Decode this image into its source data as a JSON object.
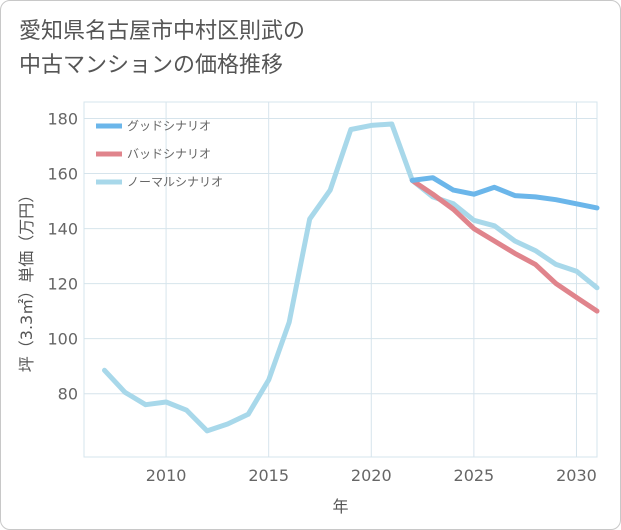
{
  "title_lines": [
    "愛知県名古屋市中村区則武の",
    "中古マンションの価格推移"
  ],
  "chart_data": {
    "type": "line",
    "xlabel": "年",
    "ylabel": "坪（3.3㎡）単価（万円）",
    "xlim": [
      2006,
      2031
    ],
    "ylim": [
      57,
      186
    ],
    "x_ticks": [
      2010,
      2015,
      2020,
      2025,
      2030
    ],
    "y_ticks": [
      80,
      100,
      120,
      140,
      160,
      180
    ],
    "grid": true,
    "legend_position": "top-left",
    "series": [
      {
        "name": "グッドシナリオ",
        "color": "#6bb6ea",
        "x": [
          2022,
          2023,
          2024,
          2025,
          2026,
          2027,
          2028,
          2029,
          2030,
          2031
        ],
        "values": [
          157.5,
          158.5,
          154,
          152.5,
          155,
          152,
          151.5,
          150.5,
          149,
          147.5
        ]
      },
      {
        "name": "バッドシナリオ",
        "color": "#e0848c",
        "x": [
          2022,
          2023,
          2024,
          2025,
          2026,
          2027,
          2028,
          2029,
          2030,
          2031
        ],
        "values": [
          157.5,
          152.5,
          147,
          140,
          135.5,
          131,
          127,
          120,
          115,
          110
        ]
      },
      {
        "name": "ノーマルシナリオ",
        "color": "#a8d8ea",
        "x": [
          2007,
          2008,
          2009,
          2010,
          2011,
          2012,
          2013,
          2014,
          2015,
          2016,
          2017,
          2018,
          2019,
          2020,
          2021,
          2022,
          2023,
          2024,
          2025,
          2026,
          2027,
          2028,
          2029,
          2030,
          2031
        ],
        "values": [
          88.5,
          80.5,
          76,
          77,
          74,
          66.5,
          69,
          72.5,
          85,
          106,
          143.5,
          154,
          176,
          177.5,
          178,
          157.5,
          151.5,
          149,
          143,
          141,
          135.5,
          132,
          127,
          124.5,
          118.5
        ]
      }
    ]
  }
}
